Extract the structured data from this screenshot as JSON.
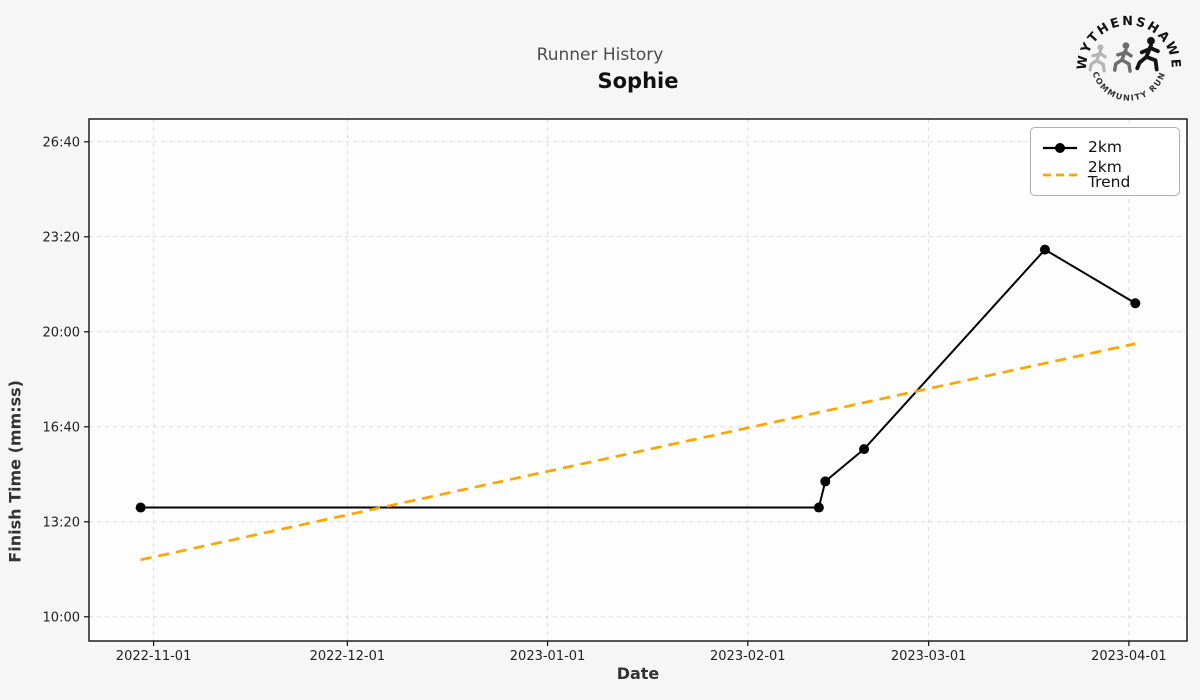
{
  "page": {
    "background": "#f6f6f6"
  },
  "header": {
    "suptitle": "Runner History",
    "title": "Sophie"
  },
  "logo": {
    "top_text": "WYTHENSHAWE",
    "bottom_text": "COMMUNITY RUN"
  },
  "chart_data": {
    "type": "line",
    "title": "Runner History",
    "subtitle": "Sophie",
    "xlabel": "Date",
    "ylabel": "Finish Time (mm:ss)",
    "grid": true,
    "legend_position": "upper right",
    "xlim": [
      "2022-10-22",
      "2023-04-10"
    ],
    "ylim": [
      "09:09",
      "27:28"
    ],
    "x_ticks": [
      "2022-11-01",
      "2022-12-01",
      "2023-01-01",
      "2023-02-01",
      "2023-03-01",
      "2023-04-01"
    ],
    "y_ticks": [
      "10:00",
      "13:20",
      "16:40",
      "20:00",
      "23:20",
      "26:40"
    ],
    "colors": {
      "series": "#000000",
      "trend": "#FFA500",
      "grid": "#dcdcdc",
      "spine": "#111111"
    },
    "series": [
      {
        "name": "2km",
        "color": "#000000",
        "line_style": "solid",
        "marker": "circle",
        "points": [
          {
            "date": "2022-10-30",
            "time": "13:50"
          },
          {
            "date": "2023-02-12",
            "time": "13:50"
          },
          {
            "date": "2023-02-13",
            "time": "14:45"
          },
          {
            "date": "2023-02-19",
            "time": "15:53"
          },
          {
            "date": "2023-03-19",
            "time": "22:53"
          },
          {
            "date": "2023-04-02",
            "time": "21:00"
          }
        ]
      },
      {
        "name": "2km Trend",
        "color": "#FFA500",
        "line_style": "dashed",
        "marker": "none",
        "points": [
          {
            "date": "2022-10-30",
            "time": "12:00"
          },
          {
            "date": "2023-04-02",
            "time": "19:35"
          }
        ]
      }
    ]
  }
}
